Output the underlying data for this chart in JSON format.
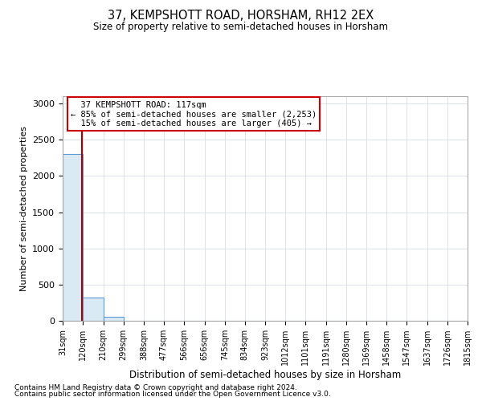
{
  "title": "37, KEMPSHOTT ROAD, HORSHAM, RH12 2EX",
  "subtitle": "Size of property relative to semi-detached houses in Horsham",
  "xlabel": "Distribution of semi-detached houses by size in Horsham",
  "ylabel": "Number of semi-detached properties",
  "bar_values": [
    2300,
    320,
    60,
    5,
    2,
    1,
    0,
    0,
    0,
    0,
    0,
    0,
    0,
    0,
    0,
    0,
    0,
    0,
    0,
    0
  ],
  "bin_edges": [
    31,
    120,
    210,
    299,
    388,
    477,
    566,
    656,
    745,
    834,
    923,
    1012,
    1101,
    1191,
    1280,
    1369,
    1458,
    1547,
    1637,
    1726,
    1815
  ],
  "bar_color": "#daeaf5",
  "bar_edge_color": "#5b9bd5",
  "property_size": 117,
  "property_label": "37 KEMPSHOTT ROAD: 117sqm",
  "pct_smaller": 85,
  "n_smaller": 2253,
  "pct_larger": 15,
  "n_larger": 405,
  "vline_color": "#aa0000",
  "annotation_box_edgecolor": "#cc0000",
  "ylim": [
    0,
    3100
  ],
  "yticks": [
    0,
    500,
    1000,
    1500,
    2000,
    2500,
    3000
  ],
  "footnote1": "Contains HM Land Registry data © Crown copyright and database right 2024.",
  "footnote2": "Contains public sector information licensed under the Open Government Licence v3.0.",
  "grid_color": "#d0d8e0",
  "background_color": "#ffffff"
}
